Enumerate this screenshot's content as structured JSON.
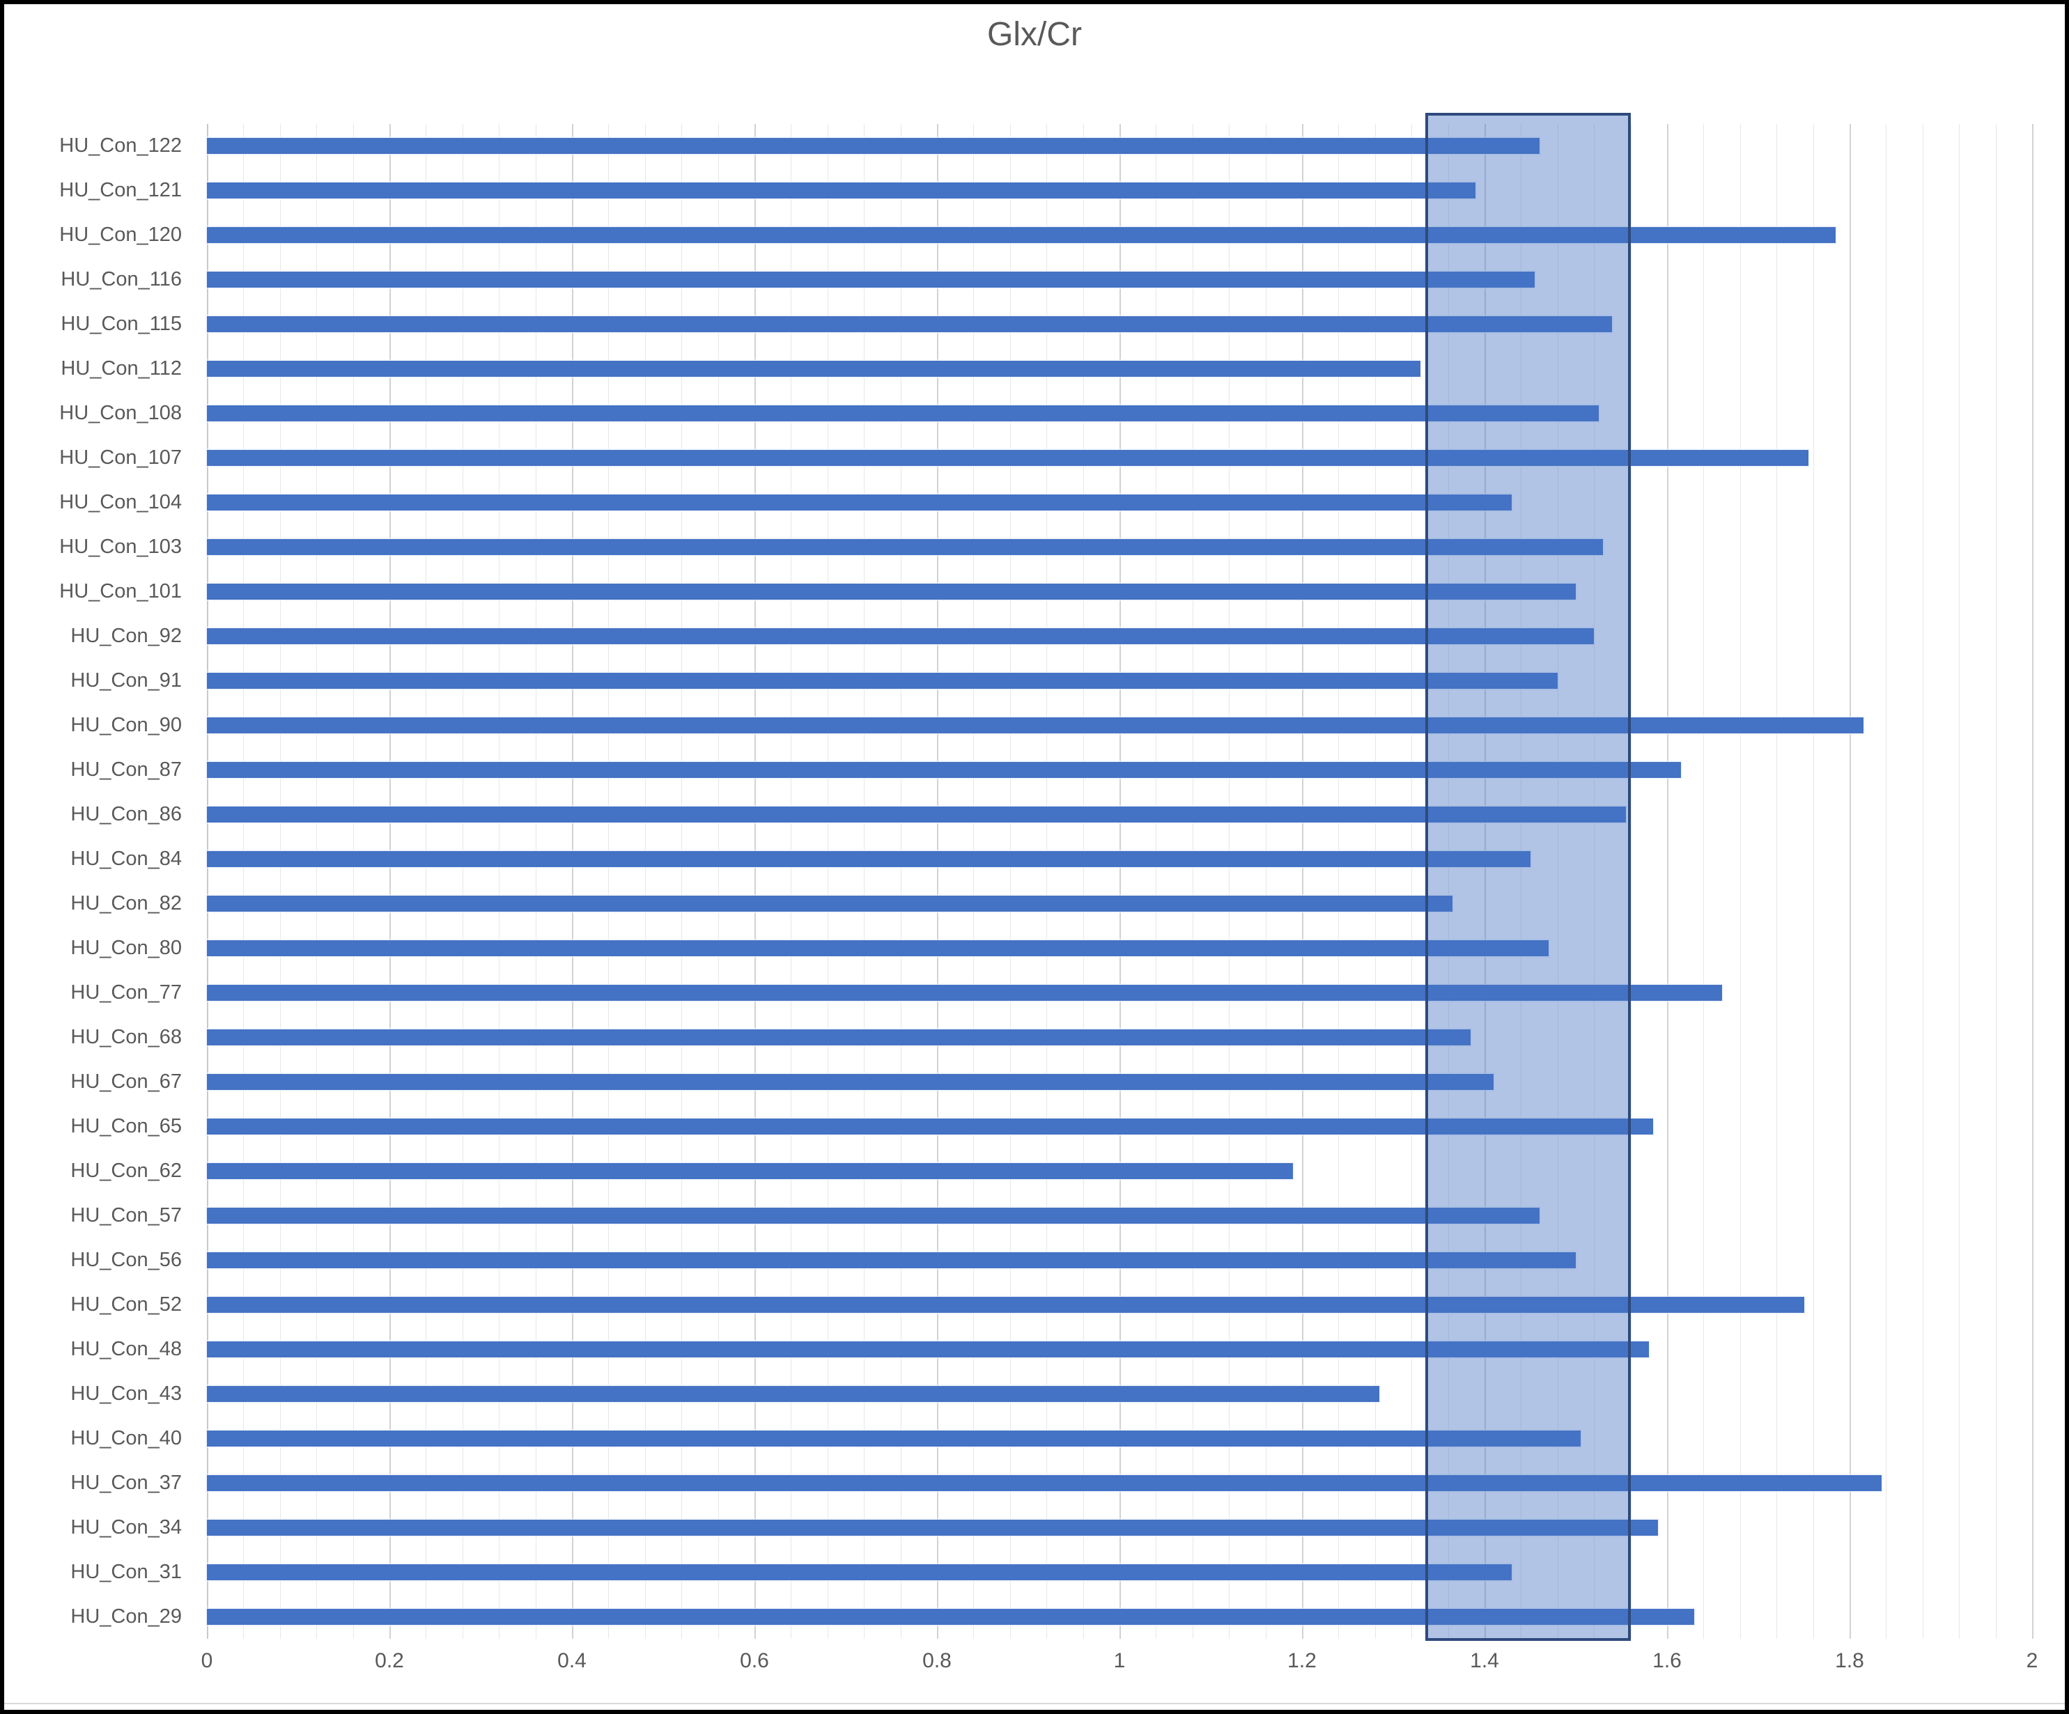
{
  "title": "Glx/Cr",
  "colors": {
    "bar": "#4472C4",
    "band_fill": "rgba(68,114,196,0.42)",
    "band_border": "#2E4A7D",
    "gridline_minor": "#e7e7e7",
    "gridline_major": "#d2d2d2",
    "text": "#595959",
    "frame": "#000000"
  },
  "chart_data": {
    "type": "bar",
    "orientation": "horizontal",
    "title": "Glx/Cr",
    "xlabel": "",
    "ylabel": "",
    "xlim": [
      0,
      2
    ],
    "x_tick_step": 0.2,
    "x_minor_grid_step": 0.04,
    "x_ticks": [
      "0",
      "0.2",
      "0.4",
      "0.6",
      "0.8",
      "1",
      "1.2",
      "1.4",
      "1.6",
      "1.8",
      "2"
    ],
    "grid": true,
    "legend": false,
    "highlight_band": {
      "from": 1.335,
      "to": 1.56
    },
    "categories": [
      "HU_Con_122",
      "HU_Con_121",
      "HU_Con_120",
      "HU_Con_116",
      "HU_Con_115",
      "HU_Con_112",
      "HU_Con_108",
      "HU_Con_107",
      "HU_Con_104",
      "HU_Con_103",
      "HU_Con_101",
      "HU_Con_92",
      "HU_Con_91",
      "HU_Con_90",
      "HU_Con_87",
      "HU_Con_86",
      "HU_Con_84",
      "HU_Con_82",
      "HU_Con_80",
      "HU_Con_77",
      "HU_Con_68",
      "HU_Con_67",
      "HU_Con_65",
      "HU_Con_62",
      "HU_Con_57",
      "HU_Con_56",
      "HU_Con_52",
      "HU_Con_48",
      "HU_Con_43",
      "HU_Con_40",
      "HU_Con_37",
      "HU_Con_34",
      "HU_Con_31",
      "HU_Con_29"
    ],
    "values": [
      1.46,
      1.39,
      1.785,
      1.455,
      1.54,
      1.33,
      1.525,
      1.755,
      1.43,
      1.53,
      1.5,
      1.52,
      1.48,
      1.815,
      1.615,
      1.555,
      1.45,
      1.365,
      1.47,
      1.66,
      1.385,
      1.41,
      1.585,
      1.19,
      1.46,
      1.5,
      1.75,
      1.58,
      1.285,
      1.505,
      1.835,
      1.59,
      1.43,
      1.63
    ]
  }
}
